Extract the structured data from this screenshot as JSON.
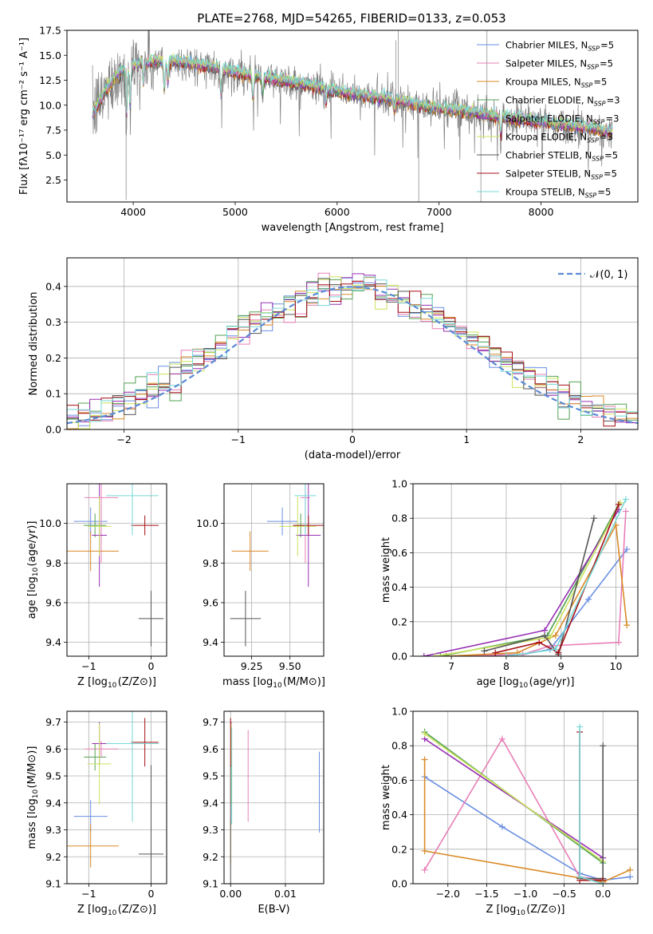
{
  "figure_title": "PLATE=2768, MJD=54265, FIBERID=0133, z=0.053",
  "colors": {
    "cm": "#6a8fe2",
    "sm": "#e87fb7",
    "km": "#d98a27",
    "ce": "#52a052",
    "se": "#9830b3",
    "ke": "#cbe35c",
    "cs": "#555555",
    "ss": "#a50f15",
    "ks": "#77d8d8",
    "data": "#7f7f7f",
    "normal": "#5b8ad6"
  },
  "chart_data": [
    {
      "id": "spectrum",
      "type": "line",
      "title": "PLATE=2768, MJD=54265, FIBERID=0133, z=0.053",
      "xlabel": "wavelength [Angstrom, rest frame]",
      "ylabel": "Flux [fλ10⁻¹⁷ erg cm⁻² s⁻¹ A⁻¹]",
      "xlim": [
        3350,
        8950
      ],
      "ylim": [
        0.3,
        17.5
      ],
      "xticks": [
        4000,
        5000,
        6000,
        7000,
        8000
      ],
      "yticks": [
        2.5,
        5.0,
        7.5,
        10.0,
        12.5,
        15.0,
        17.5
      ],
      "yticklabels": [
        "2.5",
        "5.0",
        "7.5",
        "10.0",
        "12.5",
        "15.0",
        "17.5"
      ],
      "grid": false,
      "legend_position": "top-right",
      "legend": [
        {
          "color": "cm",
          "label": "Chabrier MILES, N_SSP=5"
        },
        {
          "color": "sm",
          "label": "Salpeter MILES, N_SSP=5"
        },
        {
          "color": "km",
          "label": "Kroupa MILES, N_SSP=5"
        },
        {
          "color": "ce",
          "label": "Chabrier ELODIE, N_SSP=3"
        },
        {
          "color": "se",
          "label": "Salpeter ELODIE, N_SSP=3"
        },
        {
          "color": "ke",
          "label": "Kroupa ELODIE, N_SSP=3"
        },
        {
          "color": "cs",
          "label": "Chabrier STELIB, N_SSP=5"
        },
        {
          "color": "ss",
          "label": "Salpeter STELIB, N_SSP=5"
        },
        {
          "color": "ks",
          "label": "Kroupa STELIB, N_SSP=5"
        }
      ],
      "continuum": [
        [
          3600,
          9.0
        ],
        [
          3700,
          11.0
        ],
        [
          3800,
          12.5
        ],
        [
          3900,
          13.6
        ],
        [
          4000,
          14.0
        ],
        [
          4200,
          14.4
        ],
        [
          4500,
          14.3
        ],
        [
          4800,
          13.8
        ],
        [
          5000,
          13.3
        ],
        [
          5500,
          12.4
        ],
        [
          6000,
          11.4
        ],
        [
          6500,
          10.6
        ],
        [
          7000,
          9.7
        ],
        [
          7500,
          9.0
        ],
        [
          8000,
          8.3
        ],
        [
          8500,
          7.7
        ],
        [
          8700,
          7.3
        ]
      ]
    },
    {
      "id": "residuals",
      "type": "histogram",
      "xlabel": "(data-model)/error",
      "ylabel": "Normed distribution",
      "xlim": [
        -2.5,
        2.5
      ],
      "ylim": [
        0,
        0.48
      ],
      "xticks": [
        -2,
        -1,
        0,
        1,
        2
      ],
      "xticklabels": [
        "−2",
        "−1",
        "0",
        "1",
        "2"
      ],
      "yticks": [
        0.0,
        0.1,
        0.2,
        0.3,
        0.4
      ],
      "yticklabels": [
        "0.0",
        "0.1",
        "0.2",
        "0.3",
        "0.4"
      ],
      "grid": true,
      "legend_position": "top-right",
      "legend_label": "𝒩(0, 1)",
      "bin_width": 0.1,
      "normal": {
        "mu": 0,
        "sigma": 1
      }
    },
    {
      "id": "age_vs_Z",
      "type": "errorbar",
      "xlabel": "Z [log10(Z/Z⊙)]",
      "ylabel": "age  [log10(age/yr)]",
      "xlim": [
        -1.35,
        0.25
      ],
      "ylim": [
        9.33,
        10.2
      ],
      "xticks": [
        -1,
        0
      ],
      "xticklabels": [
        "−1",
        "0"
      ],
      "yticks": [
        9.4,
        9.6,
        9.8,
        10.0
      ],
      "yticklabels": [
        "9.4",
        "9.6",
        "9.8",
        "10.0"
      ],
      "grid": true,
      "points": [
        {
          "color": "cm",
          "x": -0.97,
          "xerr": 0.27,
          "y": 10.01,
          "yerr": 0.07
        },
        {
          "color": "sm",
          "x": -0.8,
          "xerr": 0.27,
          "y": 10.13,
          "yerr": 0.33
        },
        {
          "color": "km",
          "x": -0.97,
          "xerr": 0.45,
          "y": 9.86,
          "yerr": 0.1
        },
        {
          "color": "ce",
          "x": -0.9,
          "xerr": 0.18,
          "y": 9.99,
          "yerr": 0.06
        },
        {
          "color": "se",
          "x": -0.83,
          "xerr": 0.12,
          "y": 9.94,
          "yerr": 0.26
        },
        {
          "color": "ke",
          "x": -0.83,
          "xerr": 0.19,
          "y": 9.985,
          "yerr": 0.15
        },
        {
          "color": "cs",
          "x": 0.0,
          "xerr": 0.2,
          "y": 9.52,
          "yerr": 0.14
        },
        {
          "color": "ss",
          "x": -0.1,
          "xerr": 0.22,
          "y": 9.99,
          "yerr": 0.05
        },
        {
          "color": "ks",
          "x": -0.3,
          "xerr": 0.42,
          "y": 10.14,
          "yerr": 0.2
        }
      ]
    },
    {
      "id": "age_vs_mass",
      "type": "errorbar",
      "xlabel": "mass [log10(M/M⊙)]",
      "ylabel": "",
      "xlim": [
        9.07,
        9.72
      ],
      "ylim": [
        9.33,
        10.2
      ],
      "xticks": [
        9.25,
        9.5
      ],
      "xticklabels": [
        "9.25",
        "9.50"
      ],
      "yticks": [
        9.4,
        9.6,
        9.8,
        10.0
      ],
      "yticklabels": [
        "9.4",
        "9.6",
        "9.8",
        "10.0"
      ],
      "grid": true,
      "points": [
        {
          "color": "cm",
          "x": 9.45,
          "xerr": 0.1,
          "y": 10.01,
          "yerr": 0.07
        },
        {
          "color": "sm",
          "x": 9.6,
          "xerr": 0.03,
          "y": 10.13,
          "yerr": 0.33
        },
        {
          "color": "km",
          "x": 9.24,
          "xerr": 0.12,
          "y": 9.86,
          "yerr": 0.1
        },
        {
          "color": "ce",
          "x": 9.57,
          "xerr": 0.05,
          "y": 9.99,
          "yerr": 0.06
        },
        {
          "color": "se",
          "x": 9.62,
          "xerr": 0.08,
          "y": 9.94,
          "yerr": 0.26
        },
        {
          "color": "ke",
          "x": 9.55,
          "xerr": 0.12,
          "y": 9.985,
          "yerr": 0.15
        },
        {
          "color": "cs",
          "x": 9.21,
          "xerr": 0.1,
          "y": 9.52,
          "yerr": 0.14
        },
        {
          "color": "ss",
          "x": 9.62,
          "xerr": 0.1,
          "y": 9.99,
          "yerr": 0.05
        },
        {
          "color": "ks",
          "x": 9.6,
          "xerr": 0.07,
          "y": 10.14,
          "yerr": 0.2
        }
      ]
    },
    {
      "id": "weight_vs_age",
      "type": "line",
      "xlabel": "age  [log10(age/yr)]",
      "ylabel": "mass weight",
      "xlim": [
        6.3,
        10.4
      ],
      "ylim": [
        0,
        1
      ],
      "xticks": [
        7,
        8,
        9,
        10
      ],
      "xticklabels": [
        "7",
        "8",
        "9",
        "10"
      ],
      "yticks": [
        0.0,
        0.2,
        0.4,
        0.6,
        0.8,
        1.0
      ],
      "yticklabels": [
        "0.0",
        "0.2",
        "0.4",
        "0.6",
        "0.8",
        "1.0"
      ],
      "grid": true,
      "series": [
        {
          "color": "cm",
          "points": [
            [
              6.9,
              0.0
            ],
            [
              8.3,
              0.01
            ],
            [
              8.8,
              0.04
            ],
            [
              9.5,
              0.33
            ],
            [
              10.2,
              0.62
            ]
          ]
        },
        {
          "color": "sm",
          "points": [
            [
              6.9,
              0.0
            ],
            [
              8.3,
              0.01
            ],
            [
              8.8,
              0.06
            ],
            [
              10.05,
              0.08
            ],
            [
              10.18,
              0.84
            ]
          ]
        },
        {
          "color": "km",
          "points": [
            [
              6.9,
              0.0
            ],
            [
              8.2,
              0.02
            ],
            [
              8.9,
              0.12
            ],
            [
              10.0,
              0.76
            ],
            [
              10.2,
              0.18
            ]
          ]
        },
        {
          "color": "ce",
          "points": [
            [
              6.8,
              0.0
            ],
            [
              8.75,
              0.12
            ],
            [
              10.05,
              0.88
            ]
          ]
        },
        {
          "color": "se",
          "points": [
            [
              6.5,
              0.0
            ],
            [
              8.7,
              0.15
            ],
            [
              10.05,
              0.85
            ]
          ]
        },
        {
          "color": "ke",
          "points": [
            [
              6.7,
              0.0
            ],
            [
              8.8,
              0.11
            ],
            [
              10.08,
              0.89
            ]
          ]
        },
        {
          "color": "cs",
          "points": [
            [
              7.6,
              0.03
            ],
            [
              8.7,
              0.12
            ],
            [
              8.95,
              0.01
            ],
            [
              9.6,
              0.8
            ]
          ]
        },
        {
          "color": "ss",
          "points": [
            [
              7.8,
              0.02
            ],
            [
              8.6,
              0.08
            ],
            [
              8.95,
              0.02
            ],
            [
              10.05,
              0.88
            ]
          ]
        },
        {
          "color": "ks",
          "points": [
            [
              8.0,
              0.0
            ],
            [
              8.9,
              0.04
            ],
            [
              10.18,
              0.91
            ]
          ]
        }
      ]
    },
    {
      "id": "mass_vs_Z",
      "type": "errorbar",
      "xlabel": "Z [log10(Z/Z⊙)]",
      "ylabel": "mass [log10(M/M⊙)]",
      "xlim": [
        -1.35,
        0.25
      ],
      "ylim": [
        9.1,
        9.74
      ],
      "xticks": [
        -1,
        0
      ],
      "xticklabels": [
        "−1",
        "0"
      ],
      "yticks": [
        9.1,
        9.2,
        9.3,
        9.4,
        9.5,
        9.6,
        9.7
      ],
      "yticklabels": [
        "9.1",
        "9.2",
        "9.3",
        "9.4",
        "9.5",
        "9.6",
        "9.7"
      ],
      "grid": true,
      "points": [
        {
          "color": "cm",
          "x": -0.97,
          "xerr": 0.27,
          "y": 9.35,
          "yerr": 0.06
        },
        {
          "color": "sm",
          "x": -0.8,
          "xerr": 0.27,
          "y": 9.6,
          "yerr": 0.03
        },
        {
          "color": "km",
          "x": -0.97,
          "xerr": 0.45,
          "y": 9.24,
          "yerr": 0.08
        },
        {
          "color": "ce",
          "x": -0.9,
          "xerr": 0.18,
          "y": 9.57,
          "yerr": 0.05
        },
        {
          "color": "se",
          "x": -0.83,
          "xerr": 0.12,
          "y": 9.62,
          "yerr": 0.08
        },
        {
          "color": "ke",
          "x": -0.83,
          "xerr": 0.19,
          "y": 9.545,
          "yerr": 0.15
        },
        {
          "color": "cs",
          "x": 0.0,
          "xerr": 0.2,
          "y": 9.21,
          "yerr": 0.33
        },
        {
          "color": "ss",
          "x": -0.1,
          "xerr": 0.22,
          "y": 9.625,
          "yerr": 0.09
        },
        {
          "color": "ks",
          "x": -0.3,
          "xerr": 0.42,
          "y": 9.62,
          "yerr": 0.29
        }
      ]
    },
    {
      "id": "mass_vs_ebv",
      "type": "errorbar",
      "xlabel": "E(B-V)",
      "ylabel": "",
      "xlim": [
        -0.0012,
        0.017
      ],
      "ylim": [
        9.1,
        9.74
      ],
      "xticks": [
        0.0,
        0.01
      ],
      "xticklabels": [
        "0.00",
        "0.01"
      ],
      "yticks": [
        9.1,
        9.2,
        9.3,
        9.4,
        9.5,
        9.6,
        9.7
      ],
      "yticklabels": [
        "9.1",
        "9.2",
        "9.3",
        "9.4",
        "9.5",
        "9.6",
        "9.7"
      ],
      "grid": true,
      "points": [
        {
          "color": "cm",
          "x": 0.0162,
          "xerr": 0,
          "y": 9.44,
          "yerr": 0.15
        },
        {
          "color": "sm",
          "x": 0.0032,
          "xerr": 0,
          "y": 9.5,
          "yerr": 0.17
        },
        {
          "color": "km",
          "x": 0.0,
          "xerr": 0,
          "y": 9.25,
          "yerr": 0.08
        },
        {
          "color": "ce",
          "x": 0.0001,
          "xerr": 0,
          "y": 9.57,
          "yerr": 0.05
        },
        {
          "color": "se",
          "x": 0.0001,
          "xerr": 0,
          "y": 9.62,
          "yerr": 0.08
        },
        {
          "color": "ke",
          "x": 0.0001,
          "xerr": 0,
          "y": 9.545,
          "yerr": 0.15
        },
        {
          "color": "cs",
          "x": 0.0,
          "xerr": 0,
          "y": 9.21,
          "yerr": 0.33
        },
        {
          "color": "ss",
          "x": 0.0,
          "xerr": 0,
          "y": 9.625,
          "yerr": 0.09
        },
        {
          "color": "ks",
          "x": 0.0002,
          "xerr": 0,
          "y": 9.5,
          "yerr": 0.18
        }
      ]
    },
    {
      "id": "weight_vs_Z",
      "type": "line",
      "xlabel": "Z [log10(Z/Z⊙)]",
      "ylabel": "mass weight",
      "xlim": [
        -2.45,
        0.45
      ],
      "ylim": [
        0,
        1
      ],
      "xticks": [
        -2.0,
        -1.5,
        -1.0,
        -0.5,
        0.0
      ],
      "xticklabels": [
        "−2.0",
        "−1.5",
        "−1.0",
        "−0.5",
        "0.0"
      ],
      "yticks": [
        0.0,
        0.2,
        0.4,
        0.6,
        0.8,
        1.0
      ],
      "yticklabels": [
        "0.0",
        "0.2",
        "0.4",
        "0.6",
        "0.8",
        "1.0"
      ],
      "grid": true,
      "series": [
        {
          "color": "cm",
          "points": [
            [
              -2.3,
              0.62
            ],
            [
              -1.3,
              0.33
            ],
            [
              -0.3,
              0.06
            ],
            [
              0.0,
              0.02
            ],
            [
              0.35,
              0.04
            ]
          ]
        },
        {
          "color": "sm",
          "points": [
            [
              -2.3,
              0.08
            ],
            [
              -1.3,
              0.84
            ],
            [
              -0.3,
              0.04
            ],
            [
              0.0,
              0.02
            ]
          ]
        },
        {
          "color": "km",
          "points": [
            [
              -2.3,
              0.72
            ],
            [
              -2.3,
              0.19
            ],
            [
              0.0,
              0.01
            ],
            [
              0.35,
              0.08
            ]
          ]
        },
        {
          "color": "ce",
          "points": [
            [
              -2.3,
              0.88
            ],
            [
              0.0,
              0.12
            ]
          ]
        },
        {
          "color": "se",
          "points": [
            [
              -2.3,
              0.84
            ],
            [
              0.0,
              0.15
            ]
          ]
        },
        {
          "color": "ke",
          "points": [
            [
              -2.3,
              0.87
            ],
            [
              0.0,
              0.13
            ]
          ]
        },
        {
          "color": "cs",
          "points": [
            [
              -0.3,
              0.03
            ],
            [
              0.0,
              0.03
            ],
            [
              0.0,
              0.8
            ]
          ]
        },
        {
          "color": "ss",
          "points": [
            [
              -0.3,
              0.88
            ],
            [
              -0.3,
              0.02
            ],
            [
              0.0,
              0.02
            ]
          ]
        },
        {
          "color": "ks",
          "points": [
            [
              -0.3,
              0.91
            ],
            [
              -0.3,
              0.04
            ],
            [
              0.0,
              0.0
            ]
          ]
        }
      ]
    }
  ]
}
